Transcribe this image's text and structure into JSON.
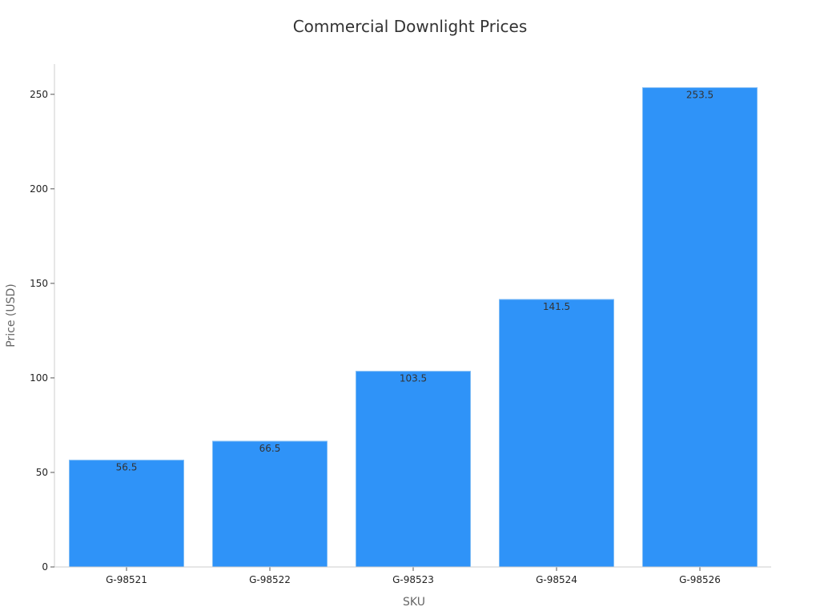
{
  "chart_data": {
    "type": "bar",
    "title": "Commercial Downlight Prices",
    "xlabel": "SKU",
    "ylabel": "Price (USD)",
    "categories": [
      "G-98521",
      "G-98522",
      "G-98523",
      "G-98524",
      "G-98526"
    ],
    "values": [
      56.5,
      66.5,
      103.5,
      141.5,
      253.5
    ],
    "value_labels": [
      "56.5",
      "66.5",
      "103.5",
      "141.5",
      "253.5"
    ],
    "ylim": [
      0,
      266
    ],
    "yticks": [
      0,
      50,
      100,
      150,
      200,
      250
    ],
    "ytick_labels": [
      "0",
      "50",
      "100",
      "150",
      "200",
      "250"
    ],
    "grid": false,
    "legend": "none",
    "colors": {
      "bar": "#2f93f8",
      "bar_edge": "#7fbcf5"
    }
  }
}
